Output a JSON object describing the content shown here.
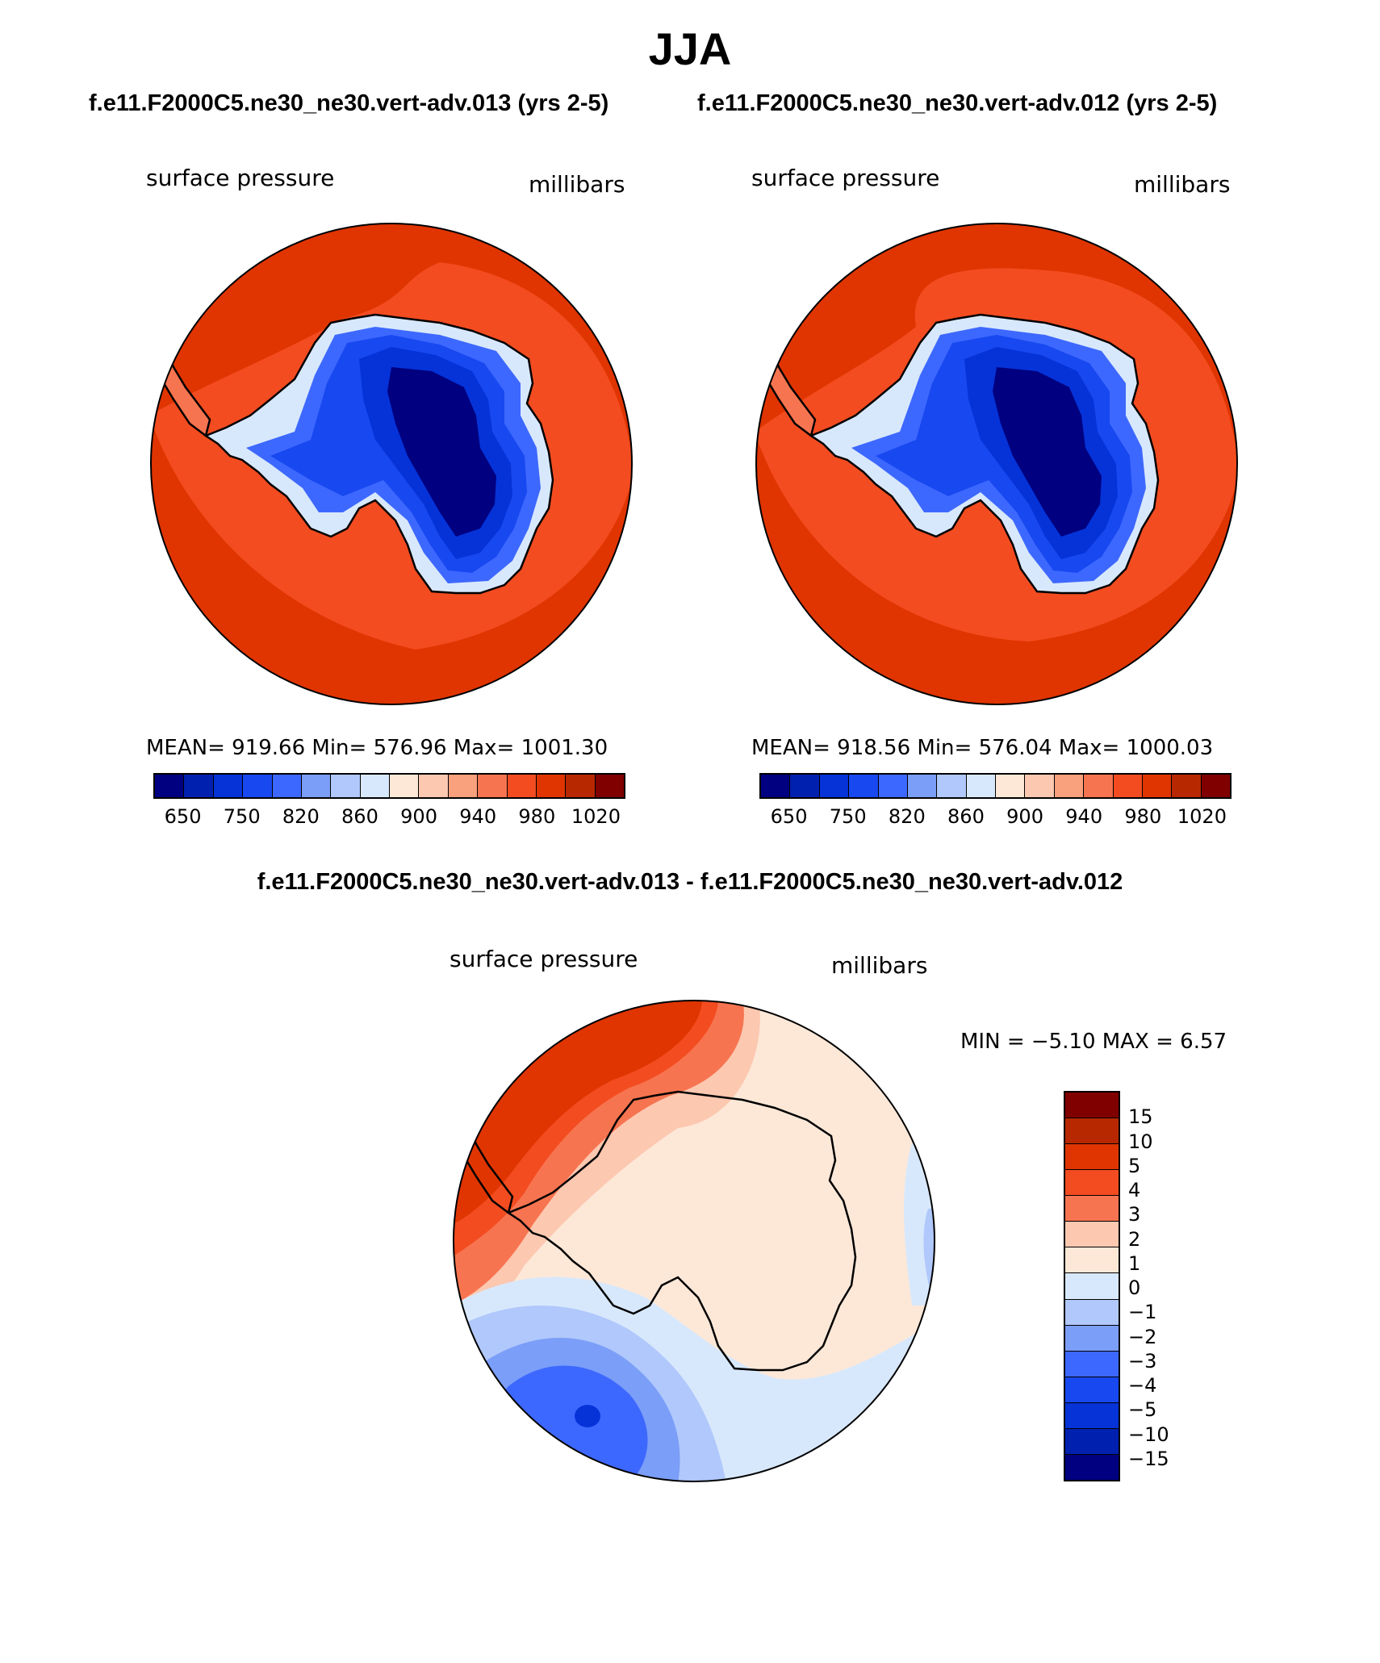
{
  "title": "JJA",
  "panels": {
    "left": {
      "case_label": "f.e11.F2000C5.ne30_ne30.vert-adv.013 (yrs 2-5)",
      "variable": "surface pressure",
      "units": "millibars",
      "stats": "MEAN= 919.66   Min= 576.96   Max= 1001.30"
    },
    "right": {
      "case_label": "f.e11.F2000C5.ne30_ne30.vert-adv.012 (yrs 2-5)",
      "variable": "surface pressure",
      "units": "millibars",
      "stats": "MEAN= 918.56   Min= 576.04   Max= 1000.03"
    },
    "diff": {
      "case_label": "f.e11.F2000C5.ne30_ne30.vert-adv.013 - f.e11.F2000C5.ne30_ne30.vert-adv.012",
      "variable": "surface pressure",
      "units": "millibars",
      "minmax": "MIN =   −5.10  MAX =     6.57"
    }
  },
  "chart_data": [
    {
      "type": "heatmap",
      "title": "f.e11.F2000C5.ne30_ne30.vert-adv.013 (yrs 2-5)",
      "variable": "surface pressure",
      "units": "millibars",
      "projection": "south polar stereographic",
      "mean": 919.66,
      "min": 576.96,
      "max": 1001.3,
      "contour_levels": [
        650,
        700,
        750,
        800,
        820,
        840,
        860,
        880,
        900,
        920,
        940,
        960,
        980,
        1000,
        1020
      ],
      "colorbar_tick_labels": [
        "650",
        "750",
        "820",
        "860",
        "900",
        "940",
        "980",
        "1020"
      ],
      "colors": [
        "#000080",
        "#0020b0",
        "#0533d8",
        "#1848f0",
        "#3d68ff",
        "#7b9ef8",
        "#b0c8fb",
        "#d8e8fc",
        "#fde8d8",
        "#fcc8b0",
        "#f9a07c",
        "#f77450",
        "#f34c20",
        "#e03500",
        "#b82800",
        "#800000"
      ]
    },
    {
      "type": "heatmap",
      "title": "f.e11.F2000C5.ne30_ne30.vert-adv.012 (yrs 2-5)",
      "variable": "surface pressure",
      "units": "millibars",
      "projection": "south polar stereographic",
      "mean": 918.56,
      "min": 576.04,
      "max": 1000.03,
      "contour_levels": [
        650,
        700,
        750,
        800,
        820,
        840,
        860,
        880,
        900,
        920,
        940,
        960,
        980,
        1000,
        1020
      ],
      "colorbar_tick_labels": [
        "650",
        "750",
        "820",
        "860",
        "900",
        "940",
        "980",
        "1020"
      ],
      "colors": [
        "#000080",
        "#0020b0",
        "#0533d8",
        "#1848f0",
        "#3d68ff",
        "#7b9ef8",
        "#b0c8fb",
        "#d8e8fc",
        "#fde8d8",
        "#fcc8b0",
        "#f9a07c",
        "#f77450",
        "#f34c20",
        "#e03500",
        "#b82800",
        "#800000"
      ]
    },
    {
      "type": "heatmap",
      "title": "f.e11.F2000C5.ne30_ne30.vert-adv.013 - f.e11.F2000C5.ne30_ne30.vert-adv.012",
      "variable": "surface pressure",
      "units": "millibars",
      "projection": "south polar stereographic",
      "min": -5.1,
      "max": 6.57,
      "contour_levels": [
        -15,
        -10,
        -5,
        -4,
        -3,
        -2,
        -1,
        0,
        1,
        2,
        3,
        4,
        5,
        10,
        15
      ],
      "colorbar_tick_labels": [
        "15",
        "10",
        "5",
        "4",
        "3",
        "2",
        "1",
        "0",
        "−1",
        "−2",
        "−3",
        "−4",
        "−5",
        "−10",
        "−15"
      ],
      "colors": [
        "#800000",
        "#b82800",
        "#e03500",
        "#f34c20",
        "#f77450",
        "#fcc8b0",
        "#fde8d8",
        "#d8e8fc",
        "#b0c8fb",
        "#7b9ef8",
        "#3d68ff",
        "#1848f0",
        "#0533d8",
        "#0020b0",
        "#000080"
      ]
    }
  ]
}
